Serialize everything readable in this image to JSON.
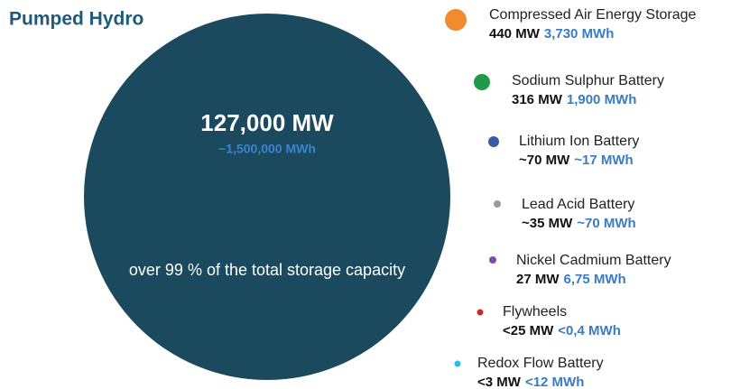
{
  "title": "Pumped Hydro",
  "main": {
    "power": "127,000 MW",
    "energy": "~1,500,000 MWh",
    "note": "over 99 % of the total storage capacity",
    "color": "#1b4a5e"
  },
  "items": [
    {
      "name": "Compressed Air Energy Storage",
      "power": "440 MW",
      "energy": "3,730 MWh",
      "color": "#f28a2e"
    },
    {
      "name": "Sodium Sulphur Battery",
      "power": "316 MW",
      "energy": "1,900 MWh",
      "color": "#1f9a4a"
    },
    {
      "name": "Lithium Ion Battery",
      "power": "~70 MW",
      "energy": "~17 MWh",
      "color": "#3b5ba8"
    },
    {
      "name": "Lead Acid Battery",
      "power": "~35 MW",
      "energy": "~70 MWh",
      "color": "#9a9a9a"
    },
    {
      "name": "Nickel Cadmium Battery",
      "power": "27 MW",
      "energy": "6,75 MWh",
      "color": "#7b4fa6"
    },
    {
      "name": "Flywheels",
      "power": "<25 MW",
      "energy": "<0,4 MWh",
      "color": "#cc2a2a"
    },
    {
      "name": "Redox Flow Battery",
      "power": "<3 MW",
      "energy": "<12 MWh",
      "color": "#22c0ea"
    }
  ]
}
